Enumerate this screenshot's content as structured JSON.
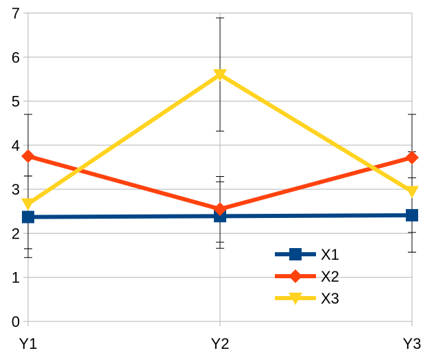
{
  "chart_data": {
    "type": "line",
    "categories": [
      "Y1",
      "Y2",
      "Y3"
    ],
    "y_ticks": [
      "0",
      "1",
      "2",
      "3",
      "4",
      "5",
      "6",
      "7"
    ],
    "ylim": [
      0,
      7
    ],
    "grid": true,
    "legend_position": "bottom-right",
    "series": [
      {
        "name": "X1",
        "color": "#004586",
        "marker": "square",
        "values": [
          2.37,
          2.39,
          2.41
        ],
        "error_low": [
          1.45,
          1.8,
          1.57
        ],
        "error_high": [
          3.3,
          3.17,
          3.26
        ]
      },
      {
        "name": "X2",
        "color": "#ff420e",
        "marker": "diamond",
        "values": [
          3.75,
          2.55,
          3.72
        ],
        "error_low": [
          1.65,
          1.66,
          2.02
        ],
        "error_high": [
          4.7,
          3.29,
          4.7
        ]
      },
      {
        "name": "X3",
        "color": "#ffd320",
        "marker": "triangle-down",
        "values": [
          2.67,
          5.6,
          2.95
        ],
        "error_low": [
          1.65,
          4.32,
          1.57
        ],
        "error_high": [
          3.3,
          6.89,
          3.85
        ]
      }
    ]
  }
}
